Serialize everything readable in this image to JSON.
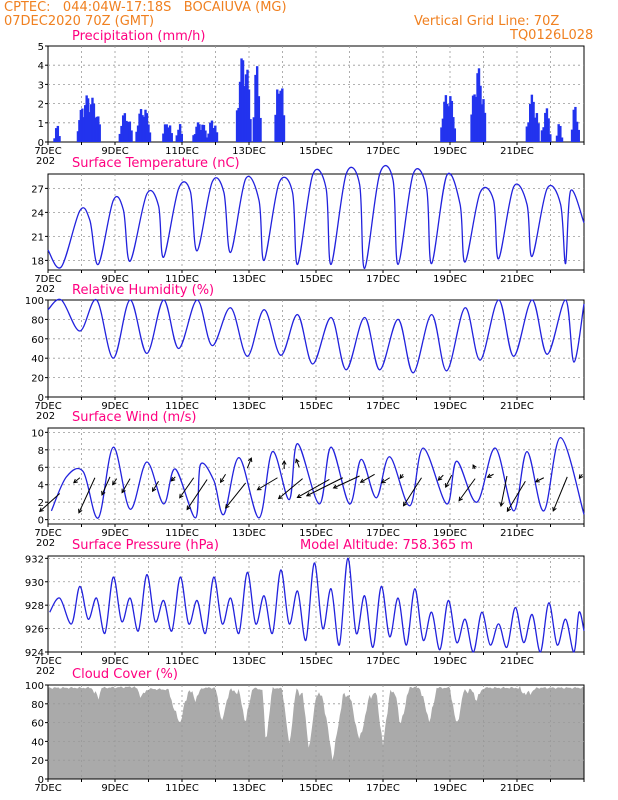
{
  "header": {
    "line1": "CPTEC:   044:04W-17:18S   BOCAIUVA (MG)",
    "line2": "07DEC2020 70Z (GMT)",
    "right1": "Vertical Grid Line: 70Z",
    "right2": "TQ0126L028"
  },
  "x_axis": {
    "date_labels": [
      "7DEC",
      "9DEC",
      "11DEC",
      "13DEC",
      "15DEC",
      "17DEC",
      "19DEC",
      "21DEC"
    ],
    "cutoff_label": "202"
  },
  "colors": {
    "series": "#2222dd",
    "bars": "#2233ee",
    "cloud": "#aaaaaa",
    "title": "#ff0080",
    "header": "#f08020"
  },
  "chart_data": [
    {
      "type": "bar",
      "title": "Precipitation (mm/h)",
      "ylim": [
        0,
        5
      ],
      "yticks": [
        "0",
        "1",
        "2",
        "3",
        "4",
        "5"
      ],
      "events": [
        {
          "start": 0.2,
          "end": 0.35,
          "peak": 0.9
        },
        {
          "start": 0.9,
          "end": 1.55,
          "peak": 2.5
        },
        {
          "start": 2.15,
          "end": 2.5,
          "peak": 1.6
        },
        {
          "start": 2.65,
          "end": 3.05,
          "peak": 1.9
        },
        {
          "start": 3.45,
          "end": 3.7,
          "peak": 1.2
        },
        {
          "start": 3.85,
          "end": 4.0,
          "peak": 1.1
        },
        {
          "start": 4.35,
          "end": 4.75,
          "peak": 1.1
        },
        {
          "start": 4.8,
          "end": 5.05,
          "peak": 1.3
        },
        {
          "start": 5.65,
          "end": 6.05,
          "peak": 4.7
        },
        {
          "start": 6.15,
          "end": 6.35,
          "peak": 4.2
        },
        {
          "start": 6.8,
          "end": 7.05,
          "peak": 3.7
        },
        {
          "start": 11.75,
          "end": 12.15,
          "peak": 2.7
        },
        {
          "start": 12.65,
          "end": 13.05,
          "peak": 3.9
        },
        {
          "start": 14.3,
          "end": 14.65,
          "peak": 2.5
        },
        {
          "start": 14.75,
          "end": 15.0,
          "peak": 1.8
        },
        {
          "start": 15.2,
          "end": 15.35,
          "peak": 1.0
        },
        {
          "start": 15.65,
          "end": 15.85,
          "peak": 2.0
        }
      ]
    },
    {
      "type": "line",
      "title": "Surface Temperature (nC)",
      "ylim": [
        16.8,
        28.8
      ],
      "yticks": [
        "18",
        "21",
        "24",
        "27"
      ],
      "lows": [
        [
          0.4,
          17.2
        ],
        [
          1.5,
          17.5
        ],
        [
          2.45,
          17.9
        ],
        [
          3.45,
          18.4
        ],
        [
          4.45,
          19.2
        ],
        [
          5.45,
          19.0
        ],
        [
          6.45,
          18.0
        ],
        [
          7.45,
          17.5
        ],
        [
          8.45,
          17.5
        ],
        [
          9.45,
          17.0
        ],
        [
          10.45,
          17.5
        ],
        [
          11.45,
          17.6
        ],
        [
          12.45,
          17.8
        ],
        [
          13.45,
          18.2
        ],
        [
          14.45,
          18.5
        ],
        [
          15.45,
          17.6
        ]
      ],
      "highs": [
        [
          0.95,
          24.2
        ],
        [
          1.95,
          25.5
        ],
        [
          2.95,
          26.3
        ],
        [
          3.9,
          27.0
        ],
        [
          4.9,
          27.8
        ],
        [
          5.9,
          28.2
        ],
        [
          6.9,
          27.7
        ],
        [
          7.9,
          28.7
        ],
        [
          8.9,
          28.8
        ],
        [
          9.9,
          28.8
        ],
        [
          10.9,
          28.8
        ],
        [
          11.9,
          28.6
        ],
        [
          12.9,
          26.5
        ],
        [
          13.9,
          27.2
        ],
        [
          14.9,
          27.0
        ],
        [
          15.6,
          26.7
        ]
      ],
      "shoulders": [
        [
          1.25,
          23.0
        ],
        [
          2.25,
          24.3
        ],
        [
          3.3,
          24.8
        ],
        [
          4.25,
          26.6
        ],
        [
          5.25,
          26.5
        ],
        [
          6.3,
          25.5
        ],
        [
          7.3,
          26.5
        ],
        [
          8.3,
          27.0
        ],
        [
          9.3,
          27.5
        ],
        [
          10.3,
          28.0
        ],
        [
          11.3,
          27.0
        ],
        [
          12.3,
          25.0
        ],
        [
          13.3,
          25.5
        ],
        [
          14.3,
          25.0
        ],
        [
          15.3,
          25.0
        ]
      ]
    },
    {
      "type": "line",
      "title": "Relative Humidity (%)",
      "ylim": [
        0,
        100
      ],
      "yticks": [
        "0",
        "20",
        "40",
        "60",
        "80",
        "100"
      ],
      "lows": [
        [
          0.95,
          68
        ],
        [
          1.95,
          40
        ],
        [
          2.95,
          45
        ],
        [
          3.9,
          50
        ],
        [
          4.9,
          53
        ],
        [
          5.95,
          42
        ],
        [
          6.95,
          43
        ],
        [
          7.9,
          34
        ],
        [
          8.9,
          28
        ],
        [
          9.9,
          28
        ],
        [
          10.9,
          25
        ],
        [
          11.9,
          27
        ],
        [
          12.9,
          38
        ],
        [
          13.9,
          42
        ],
        [
          14.9,
          44
        ],
        [
          15.7,
          36
        ]
      ],
      "highs": [
        [
          0.4,
          100
        ],
        [
          1.45,
          100
        ],
        [
          2.45,
          100
        ],
        [
          3.45,
          100
        ],
        [
          4.45,
          100
        ],
        [
          5.45,
          92
        ],
        [
          6.45,
          90
        ],
        [
          7.45,
          85
        ],
        [
          8.45,
          82
        ],
        [
          9.45,
          82
        ],
        [
          10.45,
          80
        ],
        [
          11.45,
          85
        ],
        [
          12.45,
          92
        ],
        [
          13.45,
          100
        ],
        [
          14.45,
          100
        ],
        [
          15.45,
          100
        ]
      ]
    },
    {
      "type": "line",
      "title": "Surface Wind (m/s)",
      "ylim": [
        -0.5,
        10.5
      ],
      "yticks": [
        "0",
        "2",
        "4",
        "6",
        "8",
        "10"
      ],
      "peaks": [
        [
          0.55,
          4.9
        ],
        [
          1.05,
          5.5
        ],
        [
          1.95,
          8.3
        ],
        [
          2.95,
          6.6
        ],
        [
          3.8,
          5.8
        ],
        [
          4.55,
          6.3
        ],
        [
          4.95,
          4.5
        ],
        [
          5.7,
          7.1
        ],
        [
          6.7,
          7.8
        ],
        [
          7.45,
          8.7
        ],
        [
          8.45,
          8.3
        ],
        [
          9.35,
          6.9
        ],
        [
          10.2,
          7.2
        ],
        [
          11.2,
          8.2
        ],
        [
          12.2,
          6.7
        ],
        [
          13.35,
          8.2
        ],
        [
          14.3,
          7.8
        ],
        [
          15.3,
          9.4
        ]
      ],
      "dips": [
        [
          0.1,
          1.0
        ],
        [
          1.5,
          0.2
        ],
        [
          2.45,
          1.2
        ],
        [
          3.45,
          1.8
        ],
        [
          4.4,
          0.2
        ],
        [
          5.25,
          0.6
        ],
        [
          6.3,
          0.2
        ],
        [
          7.2,
          2.3
        ],
        [
          8.1,
          1.8
        ],
        [
          9.0,
          1.8
        ],
        [
          9.8,
          2.5
        ],
        [
          10.8,
          1.6
        ],
        [
          11.9,
          1.8
        ],
        [
          12.8,
          2.0
        ],
        [
          13.9,
          1.0
        ],
        [
          14.8,
          1.0
        ],
        [
          16.0,
          0.6
        ]
      ],
      "arrows": [
        [
          0.35,
          3,
          -20,
          18
        ],
        [
          0.95,
          4.8,
          -6,
          5
        ],
        [
          1.4,
          4.8,
          -16,
          35
        ],
        [
          1.85,
          4.9,
          -8,
          18
        ],
        [
          2.05,
          4.7,
          -4,
          6
        ],
        [
          2.45,
          4.7,
          -8,
          14
        ],
        [
          3.3,
          4.4,
          -6,
          10
        ],
        [
          3.8,
          4.9,
          -4,
          4
        ],
        [
          4.35,
          4.8,
          -14,
          20
        ],
        [
          4.75,
          4.6,
          -20,
          30
        ],
        [
          5.3,
          5.2,
          -5,
          8
        ],
        [
          5.95,
          5.9,
          4,
          -10
        ],
        [
          5.9,
          4.2,
          -20,
          25
        ],
        [
          6.85,
          4.8,
          -20,
          12
        ],
        [
          7.05,
          5.8,
          0,
          -8
        ],
        [
          7.6,
          4.7,
          -24,
          20
        ],
        [
          7.5,
          6.0,
          -3,
          -8
        ],
        [
          8.4,
          4.6,
          -32,
          18
        ],
        [
          8.8,
          4.8,
          -36,
          18
        ],
        [
          9.3,
          5.0,
          -26,
          12
        ],
        [
          9.75,
          5.2,
          -14,
          8
        ],
        [
          10.2,
          4.8,
          -8,
          5
        ],
        [
          10.6,
          5.2,
          -3,
          4
        ],
        [
          11.15,
          4.8,
          -18,
          28
        ],
        [
          11.8,
          5.1,
          -5,
          5
        ],
        [
          12.05,
          5.1,
          -6,
          12
        ],
        [
          12.75,
          4.7,
          -16,
          22
        ],
        [
          12.75,
          5.8,
          -2,
          -4
        ],
        [
          13.3,
          5.2,
          -6,
          3
        ],
        [
          13.7,
          5.0,
          -6,
          30
        ],
        [
          14.25,
          4.4,
          -18,
          30
        ],
        [
          14.8,
          4.8,
          -8,
          4
        ],
        [
          15.5,
          4.9,
          -14,
          34
        ],
        [
          15.95,
          5.2,
          -3,
          4
        ]
      ]
    },
    {
      "type": "line",
      "title": "Surface Pressure (hPa)",
      "subtitle": "Model Altitude: 758.365 m",
      "ylim": [
        924,
        932.2
      ],
      "yticks": [
        "924",
        "926",
        "928",
        "930",
        "932"
      ],
      "mins": [
        [
          0.05,
          927.4
        ],
        [
          0.7,
          926.4
        ],
        [
          1.2,
          926.8
        ],
        [
          1.7,
          925.6
        ],
        [
          2.2,
          926.6
        ],
        [
          2.7,
          925.8
        ],
        [
          3.2,
          926.6
        ],
        [
          3.7,
          925.8
        ],
        [
          4.2,
          926.4
        ],
        [
          4.7,
          925.6
        ],
        [
          5.2,
          926.4
        ],
        [
          5.7,
          925.6
        ],
        [
          6.2,
          926.4
        ],
        [
          6.7,
          925.6
        ],
        [
          7.2,
          926.4
        ],
        [
          7.7,
          925.0
        ],
        [
          8.2,
          926.0
        ],
        [
          8.7,
          924.6
        ],
        [
          9.2,
          925.6
        ],
        [
          9.7,
          924.4
        ],
        [
          10.2,
          925.3
        ],
        [
          10.7,
          924.6
        ],
        [
          11.2,
          925.0
        ],
        [
          11.7,
          924.2
        ],
        [
          12.2,
          924.8
        ],
        [
          12.7,
          924.0
        ],
        [
          13.2,
          924.6
        ],
        [
          13.7,
          924.4
        ],
        [
          14.2,
          924.8
        ],
        [
          14.7,
          924.0
        ],
        [
          15.2,
          924.6
        ],
        [
          15.7,
          924.0
        ],
        [
          16.0,
          925.8
        ]
      ],
      "maxs": [
        [
          0.35,
          928.6
        ],
        [
          0.95,
          929.6
        ],
        [
          1.45,
          928.6
        ],
        [
          1.95,
          930.4
        ],
        [
          2.45,
          928.6
        ],
        [
          2.95,
          930.6
        ],
        [
          3.45,
          928.4
        ],
        [
          3.95,
          930.4
        ],
        [
          4.45,
          928.4
        ],
        [
          4.95,
          930.4
        ],
        [
          5.45,
          928.6
        ],
        [
          5.95,
          930.8
        ],
        [
          6.45,
          928.8
        ],
        [
          6.95,
          931.0
        ],
        [
          7.45,
          929.2
        ],
        [
          7.95,
          931.6
        ],
        [
          8.45,
          929.4
        ],
        [
          8.95,
          932.0
        ],
        [
          9.45,
          928.8
        ],
        [
          9.95,
          929.6
        ],
        [
          10.45,
          928.6
        ],
        [
          10.95,
          929.4
        ],
        [
          11.45,
          927.4
        ],
        [
          11.95,
          928.4
        ],
        [
          12.45,
          926.8
        ],
        [
          12.95,
          927.4
        ],
        [
          13.45,
          926.4
        ],
        [
          13.95,
          927.8
        ],
        [
          14.45,
          927.2
        ],
        [
          14.95,
          928.2
        ],
        [
          15.45,
          926.8
        ],
        [
          15.85,
          927.4
        ]
      ]
    },
    {
      "type": "area",
      "title": "Cloud Cover (%)",
      "ylim": [
        0,
        100
      ],
      "yticks": [
        "0",
        "20",
        "40",
        "60",
        "80",
        "100"
      ],
      "profile": [
        [
          0,
          97
        ],
        [
          1.3,
          97
        ],
        [
          1.5,
          86
        ],
        [
          1.6,
          97
        ],
        [
          2.6,
          98
        ],
        [
          2.8,
          88
        ],
        [
          3.0,
          96
        ],
        [
          3.6,
          95
        ],
        [
          3.8,
          70
        ],
        [
          3.95,
          60
        ],
        [
          4.2,
          96
        ],
        [
          4.4,
          85
        ],
        [
          4.6,
          97
        ],
        [
          5.0,
          97
        ],
        [
          5.2,
          60
        ],
        [
          5.4,
          94
        ],
        [
          5.7,
          93
        ],
        [
          5.9,
          60
        ],
        [
          6.1,
          97
        ],
        [
          6.4,
          95
        ],
        [
          6.5,
          38
        ],
        [
          6.7,
          97
        ],
        [
          7.0,
          96
        ],
        [
          7.2,
          35
        ],
        [
          7.4,
          95
        ],
        [
          7.6,
          90
        ],
        [
          7.8,
          30
        ],
        [
          8.0,
          90
        ],
        [
          8.2,
          88
        ],
        [
          8.5,
          20
        ],
        [
          8.8,
          88
        ],
        [
          9.0,
          90
        ],
        [
          9.3,
          40
        ],
        [
          9.6,
          88
        ],
        [
          9.8,
          92
        ],
        [
          10.0,
          35
        ],
        [
          10.2,
          93
        ],
        [
          10.4,
          90
        ],
        [
          10.5,
          55
        ],
        [
          10.8,
          98
        ],
        [
          11.1,
          97
        ],
        [
          11.4,
          60
        ],
        [
          11.6,
          97
        ],
        [
          12.0,
          97
        ],
        [
          12.2,
          55
        ],
        [
          12.4,
          92
        ],
        [
          12.6,
          96
        ],
        [
          12.8,
          85
        ],
        [
          13.0,
          97
        ],
        [
          14.0,
          97
        ],
        [
          14.3,
          90
        ],
        [
          14.6,
          97
        ],
        [
          16.0,
          97
        ]
      ]
    }
  ]
}
